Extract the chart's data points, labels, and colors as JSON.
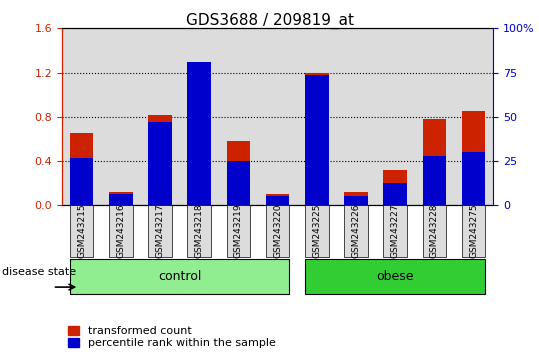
{
  "title": "GDS3688 / 209819_at",
  "samples": [
    "GSM243215",
    "GSM243216",
    "GSM243217",
    "GSM243218",
    "GSM243219",
    "GSM243220",
    "GSM243225",
    "GSM243226",
    "GSM243227",
    "GSM243228",
    "GSM243275"
  ],
  "transformed_count": [
    0.65,
    0.12,
    0.82,
    1.28,
    0.58,
    0.1,
    1.2,
    0.12,
    0.32,
    0.78,
    0.85
  ],
  "percentile_rank_scaled": [
    0.43,
    0.1,
    0.75,
    1.3,
    0.4,
    0.08,
    1.18,
    0.08,
    0.2,
    0.45,
    0.48
  ],
  "groups": [
    {
      "label": "control",
      "start": 0,
      "end": 5,
      "color": "#90EE90"
    },
    {
      "label": "obese",
      "start": 6,
      "end": 10,
      "color": "#32CD32"
    }
  ],
  "bar_color": "#CC2200",
  "percentile_color": "#0000CC",
  "bar_width": 0.6,
  "ylim_left": [
    0,
    1.6
  ],
  "ylim_right": [
    0,
    100
  ],
  "yticks_left": [
    0,
    0.4,
    0.8,
    1.2,
    1.6
  ],
  "yticks_right": [
    0,
    25,
    50,
    75,
    100
  ],
  "grid_color": "black",
  "background_color": "#DCDCDC",
  "legend_items": [
    "transformed count",
    "percentile rank within the sample"
  ],
  "legend_colors": [
    "#CC2200",
    "#0000CC"
  ],
  "disease_state_label": "disease state",
  "title_fontsize": 11,
  "tick_fontsize": 8,
  "legend_fontsize": 8
}
